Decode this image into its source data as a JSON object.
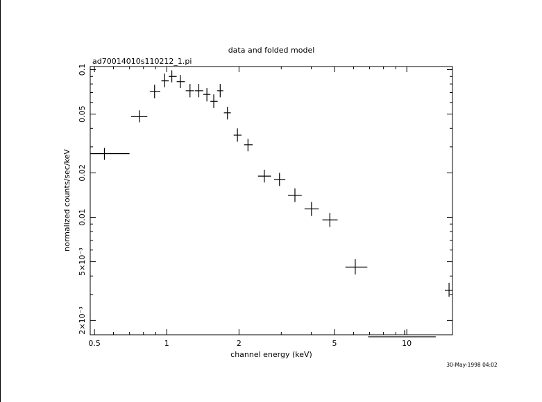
{
  "chart_data": {
    "type": "scatter",
    "title": "data and folded model",
    "subtitle": "ad70014010s110212_1.pi",
    "xlabel": "channel energy (keV)",
    "ylabel": "normalized counts/sec/keV",
    "footer": "30-May-1998 04:02",
    "x_scale": "log",
    "y_scale": "log",
    "xlim": [
      0.48,
      15.5
    ],
    "ylim": [
      0.0016,
      0.105
    ],
    "grid": false,
    "legend": "none",
    "x_ticks_major": [
      {
        "value": 0.5,
        "label": "0.5"
      },
      {
        "value": 1,
        "label": "1"
      },
      {
        "value": 2,
        "label": "2"
      },
      {
        "value": 5,
        "label": "5"
      },
      {
        "value": 10,
        "label": "10"
      }
    ],
    "y_ticks_major": [
      {
        "value": 0.1,
        "label": "0.1"
      },
      {
        "value": 0.05,
        "label": "0.05"
      },
      {
        "value": 0.02,
        "label": "0.02"
      },
      {
        "value": 0.01,
        "label": "0.01"
      },
      {
        "value": 0.005,
        "label": "5×10⁻³"
      },
      {
        "value": 0.002,
        "label": "2×10⁻³"
      }
    ],
    "points": [
      {
        "x": 0.55,
        "xlo": 0.48,
        "xhi": 0.7,
        "y": 0.027,
        "ylo": 0.0245,
        "yhi": 0.0295
      },
      {
        "x": 0.77,
        "xlo": 0.71,
        "xhi": 0.83,
        "y": 0.048,
        "ylo": 0.044,
        "yhi": 0.053
      },
      {
        "x": 0.89,
        "xlo": 0.85,
        "xhi": 0.94,
        "y": 0.071,
        "ylo": 0.064,
        "yhi": 0.079
      },
      {
        "x": 0.98,
        "xlo": 0.95,
        "xhi": 1.02,
        "y": 0.084,
        "ylo": 0.076,
        "yhi": 0.094
      },
      {
        "x": 1.05,
        "xlo": 1.02,
        "xhi": 1.1,
        "y": 0.09,
        "ylo": 0.082,
        "yhi": 0.099
      },
      {
        "x": 1.14,
        "xlo": 1.1,
        "xhi": 1.19,
        "y": 0.083,
        "ylo": 0.075,
        "yhi": 0.092
      },
      {
        "x": 1.25,
        "xlo": 1.2,
        "xhi": 1.3,
        "y": 0.072,
        "ylo": 0.065,
        "yhi": 0.08
      },
      {
        "x": 1.36,
        "xlo": 1.31,
        "xhi": 1.42,
        "y": 0.072,
        "ylo": 0.065,
        "yhi": 0.08
      },
      {
        "x": 1.47,
        "xlo": 1.42,
        "xhi": 1.52,
        "y": 0.068,
        "ylo": 0.061,
        "yhi": 0.075
      },
      {
        "x": 1.57,
        "xlo": 1.52,
        "xhi": 1.63,
        "y": 0.061,
        "ylo": 0.055,
        "yhi": 0.068
      },
      {
        "x": 1.67,
        "xlo": 1.62,
        "xhi": 1.72,
        "y": 0.072,
        "ylo": 0.065,
        "yhi": 0.08
      },
      {
        "x": 1.79,
        "xlo": 1.73,
        "xhi": 1.85,
        "y": 0.051,
        "ylo": 0.046,
        "yhi": 0.056
      },
      {
        "x": 1.97,
        "xlo": 1.9,
        "xhi": 2.05,
        "y": 0.036,
        "ylo": 0.0325,
        "yhi": 0.04
      },
      {
        "x": 2.18,
        "xlo": 2.1,
        "xhi": 2.28,
        "y": 0.031,
        "ylo": 0.028,
        "yhi": 0.034
      },
      {
        "x": 2.55,
        "xlo": 2.4,
        "xhi": 2.72,
        "y": 0.019,
        "ylo": 0.0172,
        "yhi": 0.021
      },
      {
        "x": 2.95,
        "xlo": 2.8,
        "xhi": 3.12,
        "y": 0.018,
        "ylo": 0.0163,
        "yhi": 0.02
      },
      {
        "x": 3.42,
        "xlo": 3.2,
        "xhi": 3.65,
        "y": 0.0141,
        "ylo": 0.0127,
        "yhi": 0.0157
      },
      {
        "x": 4.01,
        "xlo": 3.75,
        "xhi": 4.3,
        "y": 0.0114,
        "ylo": 0.0102,
        "yhi": 0.0127
      },
      {
        "x": 4.78,
        "xlo": 4.45,
        "xhi": 5.15,
        "y": 0.0096,
        "ylo": 0.0086,
        "yhi": 0.0107
      },
      {
        "x": 6.1,
        "xlo": 5.55,
        "xhi": 6.85,
        "y": 0.0046,
        "ylo": 0.0041,
        "yhi": 0.0052
      },
      {
        "x": 9.8,
        "xlo": 6.9,
        "xhi": 13.2,
        "y": 0.00155,
        "ylo": 0.0014,
        "yhi": 0.00172
      },
      {
        "x": 15.0,
        "xlo": 14.4,
        "xhi": 15.5,
        "y": 0.0032,
        "ylo": 0.0029,
        "yhi": 0.0036
      }
    ]
  }
}
